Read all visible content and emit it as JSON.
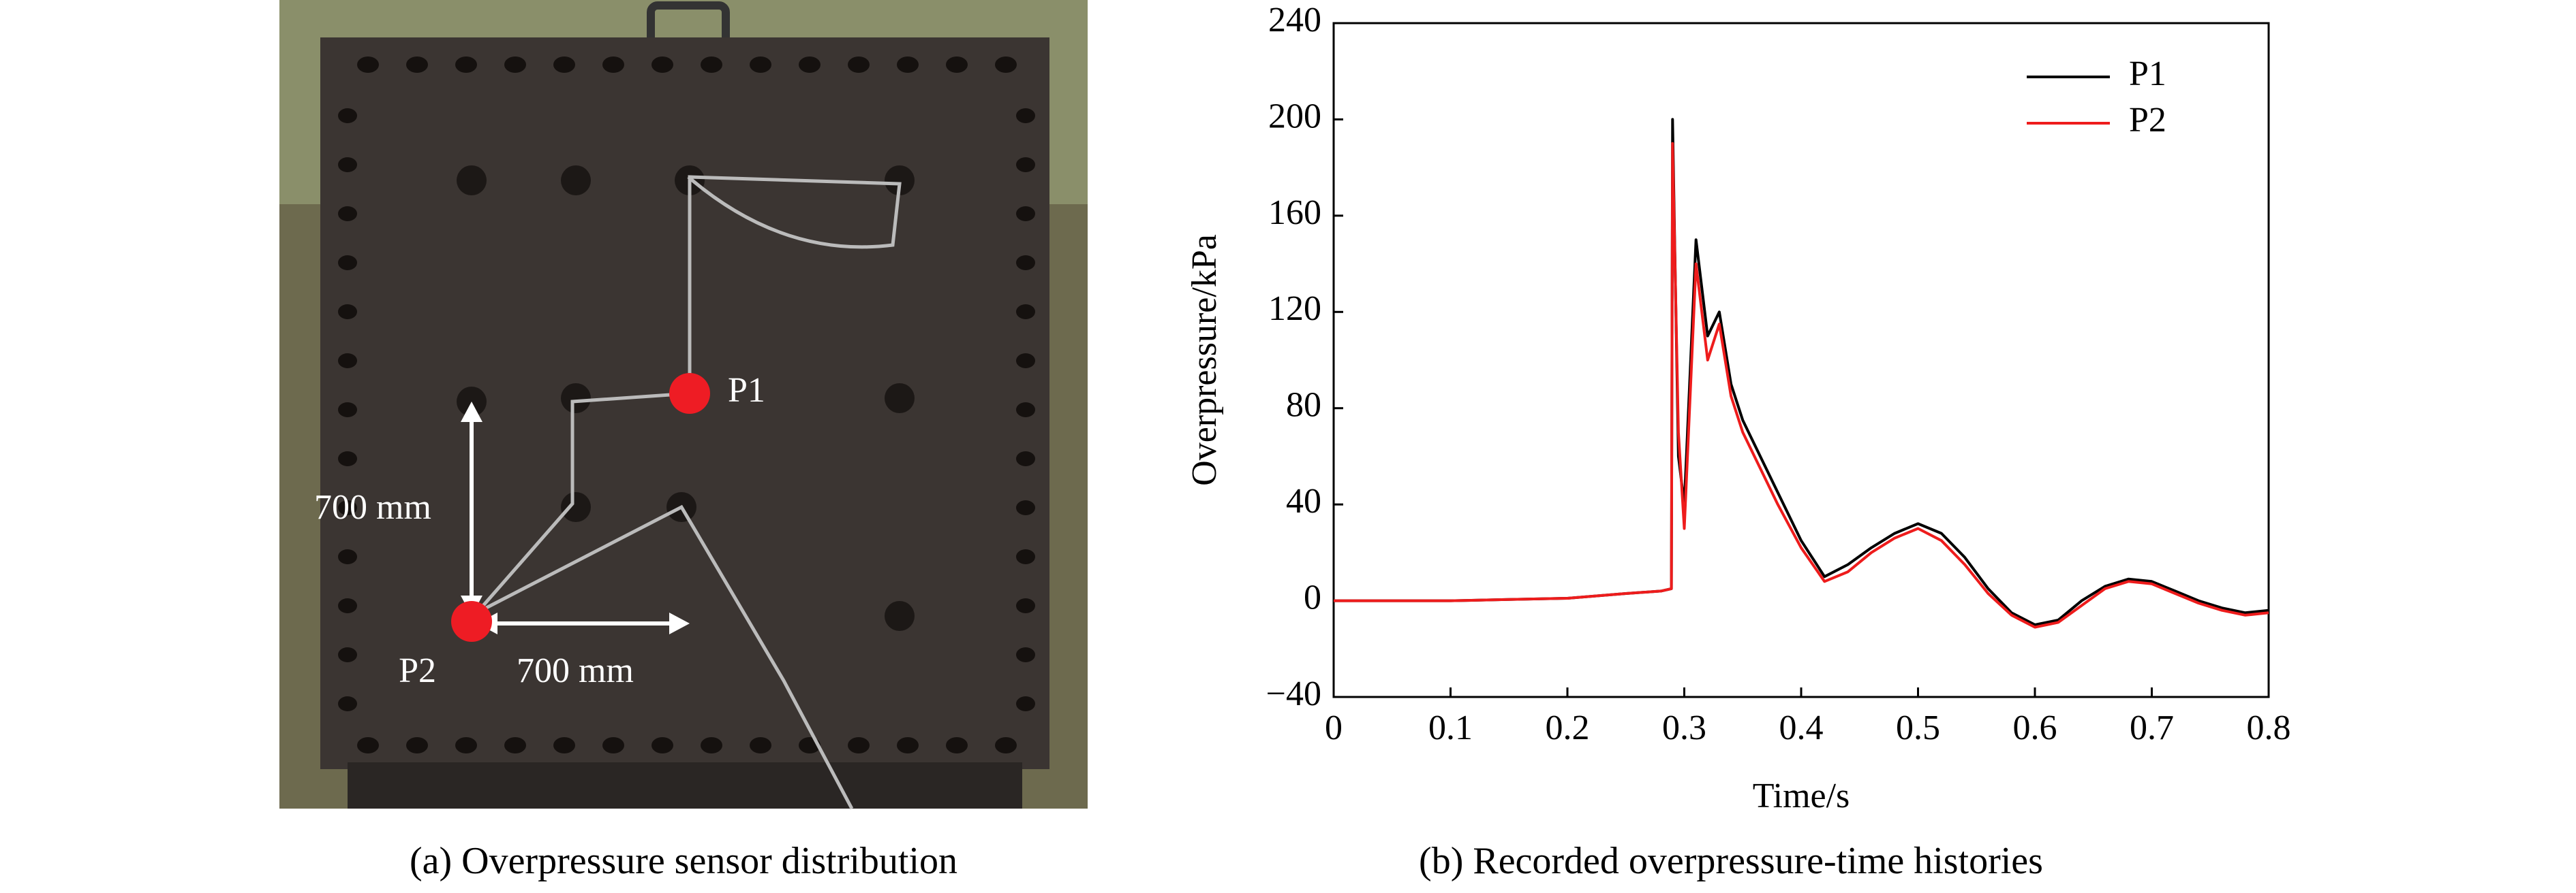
{
  "panel_a": {
    "labels": [
      "P1",
      "P2",
      "700 mm",
      "700 mm"
    ],
    "caption": "(a) Overpressure sensor distribution"
  },
  "chart_data": {
    "type": "line",
    "caption": "(b) Recorded overpressure-time histories",
    "x_label": "Time/s",
    "y_label": "Overpressure/kPa",
    "x": [
      0,
      0.05,
      0.1,
      0.15,
      0.2,
      0.25,
      0.28,
      0.289,
      0.29,
      0.295,
      0.3,
      0.31,
      0.32,
      0.33,
      0.34,
      0.35,
      0.36,
      0.38,
      0.4,
      0.42,
      0.44,
      0.46,
      0.48,
      0.5,
      0.52,
      0.54,
      0.56,
      0.58,
      0.6,
      0.62,
      0.64,
      0.66,
      0.68,
      0.7,
      0.72,
      0.74,
      0.76,
      0.78,
      0.8
    ],
    "series": [
      {
        "name": "P1",
        "color": "#000000",
        "values": [
          0,
          0,
          0,
          0.5,
          1,
          3,
          4,
          5,
          200,
          60,
          40,
          150,
          110,
          120,
          90,
          75,
          65,
          45,
          25,
          10,
          15,
          22,
          28,
          32,
          28,
          18,
          5,
          -5,
          -10,
          -8,
          0,
          6,
          9,
          8,
          4,
          0,
          -3,
          -5,
          -4
        ]
      },
      {
        "name": "P2",
        "color": "#ee1c1c",
        "values": [
          0,
          0,
          0,
          0.5,
          1,
          3,
          4,
          5,
          190,
          70,
          30,
          140,
          100,
          115,
          85,
          70,
          60,
          40,
          22,
          8,
          12,
          20,
          26,
          30,
          25,
          15,
          3,
          -6,
          -11,
          -9,
          -2,
          5,
          8,
          7,
          3,
          -1,
          -4,
          -6,
          -5
        ]
      }
    ],
    "xlim": [
      0,
      0.8
    ],
    "xticks": [
      0,
      0.1,
      0.2,
      0.3,
      0.4,
      0.5,
      0.6,
      0.7,
      0.8
    ],
    "ylim": [
      -40,
      240
    ],
    "yticks": [
      {
        "value": -40,
        "label": "−40"
      },
      0,
      40,
      80,
      120,
      160,
      200,
      240
    ],
    "legend": "upper right"
  }
}
